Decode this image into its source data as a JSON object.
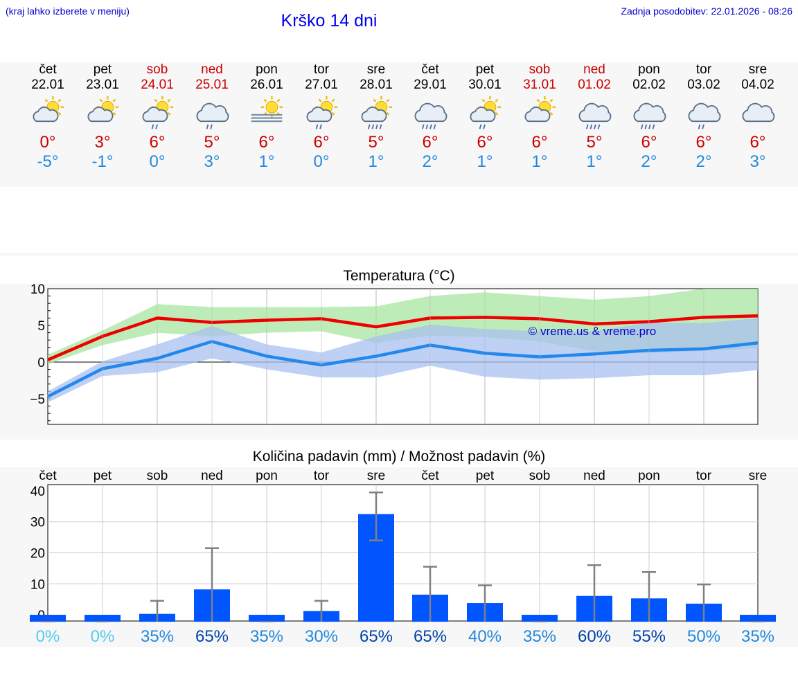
{
  "header": {
    "hint": "(kraj lahko izberete v meniju)",
    "title": "Krško 14 dni",
    "updated": "Zadnja posodobitev: 22.01.2026 - 08:26"
  },
  "forecast": [
    {
      "day": "čet",
      "date": "22.01",
      "icon": "partly-cloudy-icon",
      "tmax": "0°",
      "tmin": "-5°",
      "weekend": false
    },
    {
      "day": "pet",
      "date": "23.01",
      "icon": "partly-cloudy-icon",
      "tmax": "3°",
      "tmin": "-1°",
      "weekend": false
    },
    {
      "day": "sob",
      "date": "24.01",
      "icon": "sun-cloud-rain-icon",
      "tmax": "6°",
      "tmin": "0°",
      "weekend": true
    },
    {
      "day": "ned",
      "date": "25.01",
      "icon": "cloud-rain-icon",
      "tmax": "5°",
      "tmin": "3°",
      "weekend": true
    },
    {
      "day": "pon",
      "date": "26.01",
      "icon": "sun-fog-icon",
      "tmax": "6°",
      "tmin": "1°",
      "weekend": false
    },
    {
      "day": "tor",
      "date": "27.01",
      "icon": "sun-cloud-rain-icon",
      "tmax": "6°",
      "tmin": "0°",
      "weekend": false
    },
    {
      "day": "sre",
      "date": "28.01",
      "icon": "sun-cloud-heavy-rain-icon",
      "tmax": "5°",
      "tmin": "1°",
      "weekend": false
    },
    {
      "day": "čet",
      "date": "29.01",
      "icon": "cloud-heavy-rain-icon",
      "tmax": "6°",
      "tmin": "2°",
      "weekend": false
    },
    {
      "day": "pet",
      "date": "30.01",
      "icon": "sun-cloud-rain-icon",
      "tmax": "6°",
      "tmin": "1°",
      "weekend": false
    },
    {
      "day": "sob",
      "date": "31.01",
      "icon": "partly-cloudy-icon",
      "tmax": "6°",
      "tmin": "1°",
      "weekend": true
    },
    {
      "day": "ned",
      "date": "01.02",
      "icon": "cloud-heavy-rain-icon",
      "tmax": "5°",
      "tmin": "1°",
      "weekend": true
    },
    {
      "day": "pon",
      "date": "02.02",
      "icon": "cloud-heavy-rain-icon",
      "tmax": "6°",
      "tmin": "2°",
      "weekend": false
    },
    {
      "day": "tor",
      "date": "03.02",
      "icon": "cloud-rain-icon",
      "tmax": "6°",
      "tmin": "2°",
      "weekend": false
    },
    {
      "day": "sre",
      "date": "04.02",
      "icon": "cloudy-icon",
      "tmax": "6°",
      "tmin": "3°",
      "weekend": false
    }
  ],
  "colors": {
    "max_line": "#ee0000",
    "max_band": "#a8e6a0",
    "min_line": "#2288ee",
    "min_band": "#a8c0f0",
    "bar": "#0055ff",
    "weekend": "#cc0000",
    "prob_low": "#55ccee",
    "prob_mid": "#2288dd",
    "prob_high": "#0044aa"
  },
  "chart_data": [
    {
      "type": "line",
      "title": "Temperatura (°C)",
      "watermark": "© vreme.us & vreme.pro",
      "x": [
        0,
        1,
        2,
        3,
        4,
        5,
        6,
        7,
        8,
        9,
        10,
        11,
        12,
        13
      ],
      "ylim": [
        -8.5,
        10
      ],
      "yticks": [
        10,
        5,
        0,
        -5
      ],
      "ytick_labels": [
        "10",
        "5",
        "0",
        "−5"
      ],
      "series": [
        {
          "name": "max",
          "values": [
            0.3,
            3.5,
            6.0,
            5.4,
            5.7,
            5.9,
            4.8,
            6.0,
            6.1,
            5.9,
            5.2,
            5.5,
            6.1,
            6.3
          ],
          "band_low": [
            -0.3,
            2.3,
            4.0,
            3.5,
            4.0,
            4.2,
            2.6,
            3.6,
            3.4,
            2.8,
            1.5,
            1.2,
            1.5,
            1.9
          ],
          "band_high": [
            1.0,
            4.3,
            7.9,
            7.5,
            7.5,
            7.5,
            7.6,
            9.0,
            9.5,
            9.0,
            8.5,
            9.0,
            10.0,
            10.0
          ]
        },
        {
          "name": "min",
          "values": [
            -4.7,
            -0.9,
            0.5,
            2.8,
            0.8,
            -0.4,
            0.8,
            2.3,
            1.2,
            0.7,
            1.1,
            1.6,
            1.8,
            2.6
          ],
          "band_low": [
            -5.5,
            -1.9,
            -1.4,
            0.5,
            -1.0,
            -2.1,
            -2.1,
            -0.5,
            -2.0,
            -2.4,
            -2.2,
            -1.8,
            -1.8,
            -1.1
          ],
          "band_high": [
            -4.0,
            0.1,
            2.4,
            4.9,
            2.4,
            1.3,
            3.5,
            5.1,
            4.5,
            4.2,
            4.2,
            5.4,
            5.3,
            6.0
          ]
        }
      ]
    },
    {
      "type": "bar",
      "title": "Količina padavin (mm) / Možnost padavin (%)",
      "categories": [
        "čet",
        "pet",
        "sob",
        "ned",
        "pon",
        "tor",
        "sre",
        "čet",
        "pet",
        "sob",
        "ned",
        "pon",
        "tor",
        "sre"
      ],
      "values": [
        0,
        0,
        0.3,
        8.2,
        0,
        1.2,
        32.5,
        6.5,
        3.8,
        0,
        6.1,
        5.3,
        3.6,
        0
      ],
      "error_high": [
        0,
        0,
        4.5,
        21.5,
        0,
        4.5,
        39.5,
        15.5,
        9.5,
        0,
        16.0,
        13.8,
        9.8,
        0
      ],
      "error_low": [
        0,
        0,
        0,
        0,
        0,
        0,
        24.0,
        0,
        0,
        0,
        0,
        0,
        0,
        0
      ],
      "probability": [
        "0%",
        "0%",
        "35%",
        "65%",
        "35%",
        "30%",
        "65%",
        "65%",
        "40%",
        "35%",
        "60%",
        "55%",
        "50%",
        "35%"
      ],
      "ylim": [
        -2,
        42
      ],
      "yticks": [
        40,
        30,
        20,
        10,
        0
      ],
      "ytick_labels": [
        "40",
        "30",
        "20",
        "10",
        "0"
      ]
    }
  ]
}
